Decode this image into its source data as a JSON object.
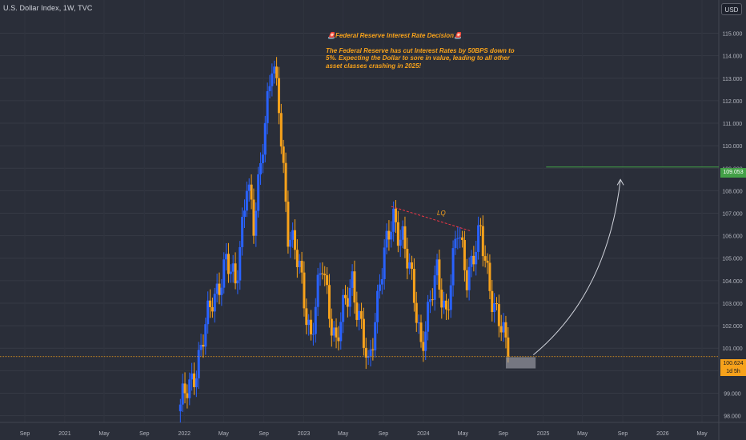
{
  "header": {
    "symbol_title": "U.S. Dollar Index, 1W, TVC",
    "currency_button": "USD"
  },
  "annotations": {
    "title": "🚨Federal Reserve Interest Rate Decision🚨",
    "body": "The Federal Reserve has cut Interest Rates by 50BPS down to 5%. Expecting the Dollar to sore in value, leading to all other asset classes crashing in 2025!",
    "lq_label": "LQ"
  },
  "price_badges": {
    "target": "109.053",
    "last": "100.624",
    "countdown": "1d 5h"
  },
  "colors": {
    "background": "#2a2e39",
    "candle_blue": "#2962ff",
    "candle_orange": "#f7a21b",
    "target_line": "#43a047",
    "last_price_line": "#f7a21b",
    "lq_line": "#f23645",
    "arrow": "#d1d4dc"
  },
  "chart_data": {
    "type": "candlestick",
    "symbol": "U.S. Dollar Index",
    "interval": "1W",
    "source": "TVC",
    "x_ticks": [
      "Sep",
      "2021",
      "May",
      "Sep",
      "2022",
      "May",
      "Sep",
      "2023",
      "May",
      "Sep",
      "2024",
      "May",
      "Sep",
      "2025",
      "May",
      "Sep",
      "2026",
      "May"
    ],
    "x_tick_dates": [
      "2020-09-01",
      "2021-01-01",
      "2021-05-01",
      "2021-09-01",
      "2022-01-01",
      "2022-05-01",
      "2022-09-01",
      "2023-01-01",
      "2023-05-01",
      "2023-09-01",
      "2024-01-01",
      "2024-05-01",
      "2024-09-01",
      "2025-01-01",
      "2025-05-01",
      "2025-09-01",
      "2026-01-01",
      "2026-05-01"
    ],
    "y_ticks": [
      "98.000",
      "99.000",
      "100.000",
      "101.000",
      "102.000",
      "103.000",
      "104.000",
      "105.000",
      "106.000",
      "107.000",
      "108.000",
      "109.000",
      "110.000",
      "111.000",
      "112.000",
      "113.000",
      "114.000",
      "115.000"
    ],
    "ylim": [
      97.7,
      116.3
    ],
    "anchors": [
      {
        "date": "2021-12-20",
        "close": 98.2
      },
      {
        "date": "2022-01-10",
        "close": 99.2
      },
      {
        "date": "2022-02-21",
        "close": 100.8
      },
      {
        "date": "2022-03-28",
        "close": 103.3
      },
      {
        "date": "2022-05-09",
        "close": 104.6
      },
      {
        "date": "2022-06-06",
        "close": 104.0
      },
      {
        "date": "2022-07-11",
        "close": 108.3
      },
      {
        "date": "2022-08-01",
        "close": 106.2
      },
      {
        "date": "2022-08-29",
        "close": 110.5
      },
      {
        "date": "2022-09-26",
        "close": 113.4
      },
      {
        "date": "2022-10-17",
        "close": 111.8
      },
      {
        "date": "2022-11-14",
        "close": 106.3
      },
      {
        "date": "2022-12-19",
        "close": 104.4
      },
      {
        "date": "2023-01-23",
        "close": 101.6
      },
      {
        "date": "2023-02-27",
        "close": 104.6
      },
      {
        "date": "2023-04-10",
        "close": 101.2
      },
      {
        "date": "2023-05-29",
        "close": 104.2
      },
      {
        "date": "2023-07-17",
        "close": 99.9
      },
      {
        "date": "2023-08-21",
        "close": 104.2
      },
      {
        "date": "2023-10-02",
        "close": 106.7
      },
      {
        "date": "2023-10-30",
        "close": 106.1
      },
      {
        "date": "2023-12-25",
        "close": 101.3
      },
      {
        "date": "2024-02-12",
        "close": 104.2
      },
      {
        "date": "2024-03-11",
        "close": 102.7
      },
      {
        "date": "2024-04-15",
        "close": 106.1
      },
      {
        "date": "2024-05-13",
        "close": 104.4
      },
      {
        "date": "2024-06-24",
        "close": 105.9
      },
      {
        "date": "2024-08-12",
        "close": 102.5
      },
      {
        "date": "2024-09-16",
        "close": 100.624
      }
    ],
    "levels": {
      "target": 109.053,
      "last": 100.624
    },
    "lq_line": {
      "from": {
        "date": "2023-09-25",
        "value": 107.3
      },
      "to": {
        "date": "2024-05-27",
        "value": 106.2
      },
      "label": "LQ"
    },
    "projection_zone": {
      "from_date": "2024-09-09",
      "to_date": "2024-12-09",
      "low": 100.1,
      "high": 100.6
    },
    "projection_arrow": {
      "from": {
        "date": "2024-12-02",
        "value": 100.7
      },
      "to": {
        "date": "2025-08-25",
        "value": 108.5
      }
    }
  }
}
